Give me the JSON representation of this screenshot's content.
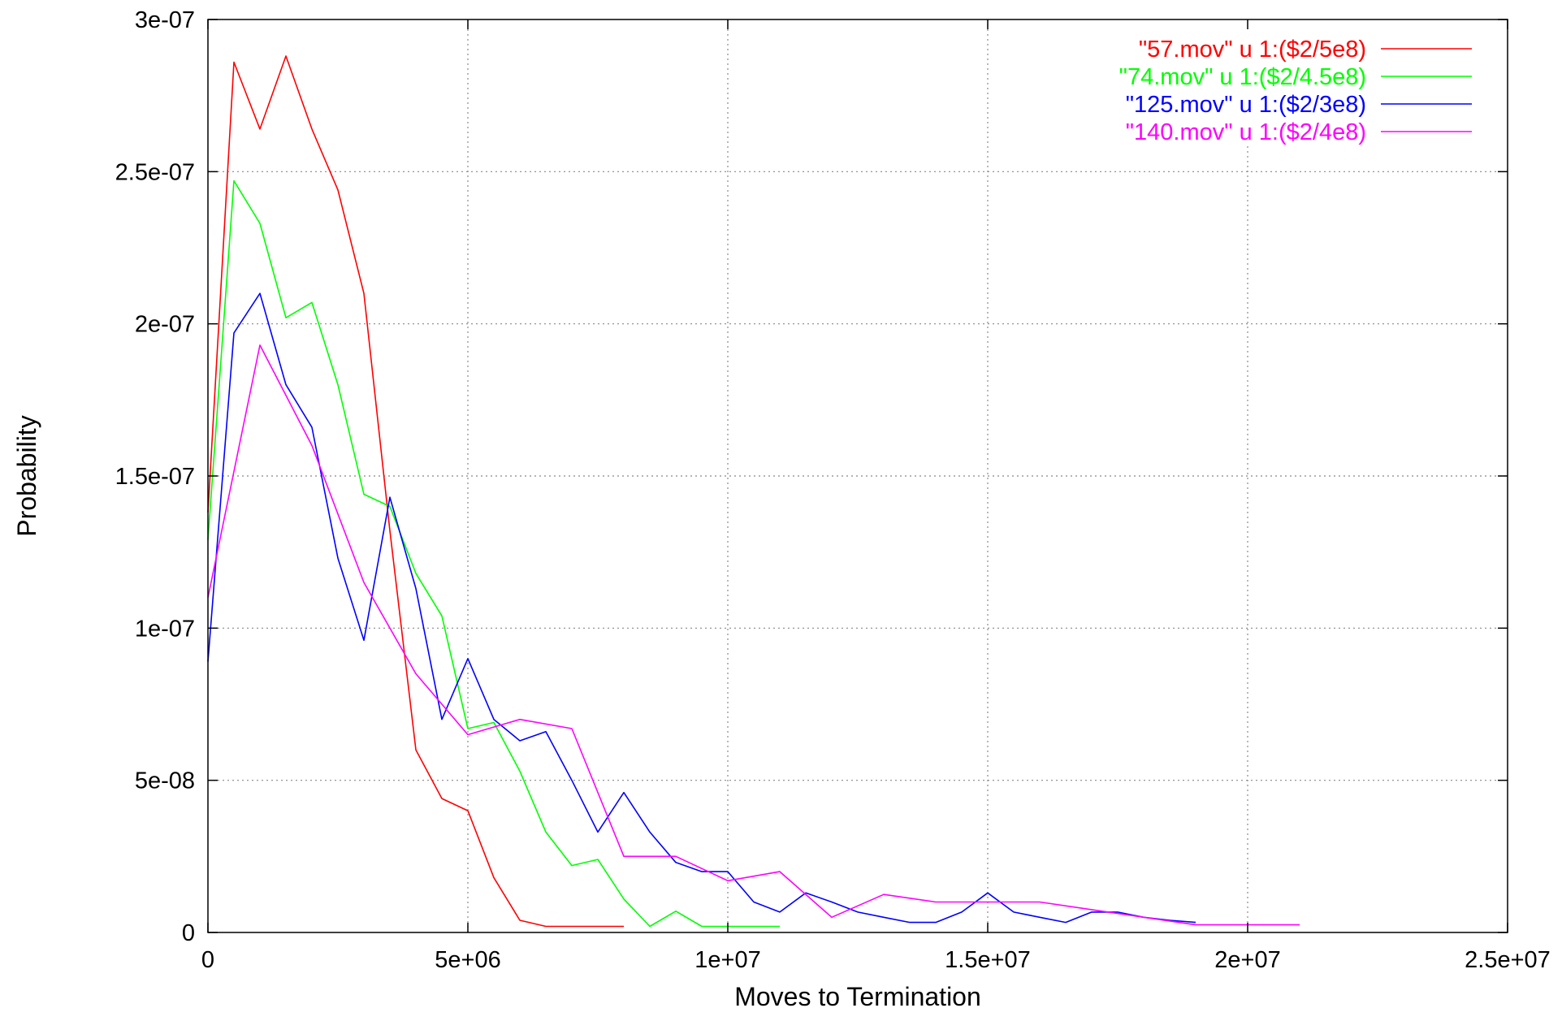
{
  "chart_data": {
    "type": "line",
    "title": "",
    "xlabel": "Moves to Termination",
    "ylabel": "Probability",
    "xlim": [
      0,
      25000000
    ],
    "ylim": [
      0,
      3e-07
    ],
    "grid": true,
    "legend_position": "top-right",
    "xticks": [
      0,
      5000000,
      10000000,
      15000000,
      20000000,
      25000000
    ],
    "xtick_labels": [
      "0",
      "5e+06",
      "1e+07",
      "1.5e+07",
      "2e+07",
      "2.5e+07"
    ],
    "yticks": [
      0,
      5e-08,
      1e-07,
      1.5e-07,
      2e-07,
      2.5e-07,
      3e-07
    ],
    "ytick_labels": [
      "0",
      "5e-08",
      "1e-07",
      "1.5e-07",
      "2e-07",
      "2.5e-07",
      "3e-07"
    ],
    "series": [
      {
        "name": "\"57.mov\" u 1:($2/5e8)",
        "color": "#ff0000",
        "x": [
          0,
          500000,
          1000000,
          1500000,
          2000000,
          2500000,
          3000000,
          3500000,
          4000000,
          4500000,
          5000000,
          5500000,
          6000000,
          6500000,
          7000000,
          7500000,
          8000000
        ],
        "y": [
          1.38e-07,
          2.86e-07,
          2.64e-07,
          2.88e-07,
          2.64e-07,
          2.44e-07,
          2.1e-07,
          1.32e-07,
          6e-08,
          4.4e-08,
          4e-08,
          1.8e-08,
          4e-09,
          2e-09,
          2e-09,
          2e-09,
          2e-09
        ]
      },
      {
        "name": "\"74.mov\" u 1:($2/4.5e8)",
        "color": "#00ff00",
        "x": [
          0,
          500000,
          1000000,
          1500000,
          2000000,
          2500000,
          3000000,
          3500000,
          4000000,
          4500000,
          5000000,
          5500000,
          6000000,
          6500000,
          7000000,
          7500000,
          8000000,
          8500000,
          9000000,
          9500000,
          10000000,
          10500000,
          11000000
        ],
        "y": [
          1.29e-07,
          2.47e-07,
          2.33e-07,
          2.02e-07,
          2.07e-07,
          1.8e-07,
          1.44e-07,
          1.4e-07,
          1.18e-07,
          1.04e-07,
          6.7e-08,
          6.9e-08,
          5.3e-08,
          3.3e-08,
          2.2e-08,
          2.4e-08,
          1.1e-08,
          2e-09,
          7e-09,
          2e-09,
          2e-09,
          2e-09,
          2e-09
        ]
      },
      {
        "name": "\"125.mov\" u 1:($2/3e8)",
        "color": "#0000ff",
        "x": [
          0,
          500000,
          1000000,
          1500000,
          2000000,
          2500000,
          3000000,
          3500000,
          4000000,
          4500000,
          5000000,
          5500000,
          6000000,
          6500000,
          7000000,
          7500000,
          8000000,
          8500000,
          9000000,
          9500000,
          10000000,
          10500000,
          11000000,
          11500000,
          12000000,
          12500000,
          13000000,
          13500000,
          14000000,
          14500000,
          15000000,
          15500000,
          16000000,
          16500000,
          17000000,
          17500000,
          18000000,
          18500000,
          19000000
        ],
        "y": [
          8.9e-08,
          1.97e-07,
          2.1e-07,
          1.8e-07,
          1.66e-07,
          1.23e-07,
          9.6e-08,
          1.43e-07,
          1.13e-07,
          7e-08,
          9e-08,
          7e-08,
          6.3e-08,
          6.6e-08,
          5e-08,
          3.3e-08,
          4.6e-08,
          3.3e-08,
          2.3e-08,
          2e-08,
          2e-08,
          1e-08,
          6.7e-09,
          1.3e-08,
          1e-08,
          6.7e-09,
          5e-09,
          3.3e-09,
          3.3e-09,
          6.7e-09,
          1.3e-08,
          6.7e-09,
          5e-09,
          3.3e-09,
          6.7e-09,
          6.7e-09,
          5e-09,
          4e-09,
          3.3e-09
        ]
      },
      {
        "name": "\"140.mov\" u 1:($2/4e8)",
        "color": "#ff00ff",
        "x": [
          0,
          1000000,
          2000000,
          3000000,
          4000000,
          5000000,
          6000000,
          7000000,
          8000000,
          9000000,
          10000000,
          11000000,
          12000000,
          13000000,
          14000000,
          15000000,
          16000000,
          17000000,
          18000000,
          19000000,
          20000000,
          21000000
        ],
        "y": [
          1.1e-07,
          1.93e-07,
          1.6e-07,
          1.15e-07,
          8.5e-08,
          6.5e-08,
          7e-08,
          6.7e-08,
          2.5e-08,
          2.5e-08,
          1.7e-08,
          2e-08,
          5e-09,
          1.25e-08,
          1e-08,
          1e-08,
          1e-08,
          7.5e-09,
          5e-09,
          2.5e-09,
          2.5e-09,
          2.5e-09
        ]
      }
    ]
  }
}
